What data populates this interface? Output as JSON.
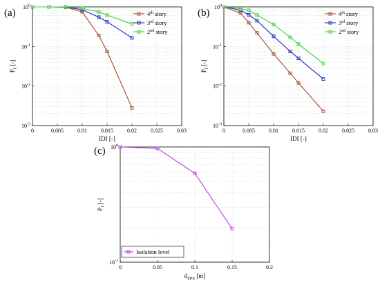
{
  "chart_data": [
    {
      "panel": "(a)",
      "type": "line",
      "xlabel": "IDI [-]",
      "ylabel": "P_f [-]",
      "xlim": [
        0,
        0.03
      ],
      "ylim": [
        0.001,
        1
      ],
      "yscale": "log",
      "grid": true,
      "legend_position": "top-right",
      "x_ticks": [
        "0",
        "0.005",
        "0.01",
        "0.015",
        "0.02",
        "0.025",
        "0.03"
      ],
      "y_ticks": [
        "10^0",
        "10^-1",
        "10^-2",
        "10^-3"
      ],
      "series": [
        {
          "name": "4th story",
          "color": "#a0452a",
          "x": [
            0,
            0.00333,
            0.00667,
            0.01,
            0.01333,
            0.015,
            0.02
          ],
          "y": [
            1.0,
            1.0,
            0.99,
            0.75,
            0.19,
            0.075,
            0.0028
          ]
        },
        {
          "name": "3rd story",
          "color": "#1a22c8",
          "x": [
            0,
            0.00333,
            0.00667,
            0.01,
            0.01333,
            0.015,
            0.02
          ],
          "y": [
            1.0,
            1.0,
            0.99,
            0.85,
            0.55,
            0.42,
            0.165
          ]
        },
        {
          "name": "2nd story",
          "color": "#39d22c",
          "x": [
            0,
            0.00333,
            0.00667,
            0.01,
            0.01333,
            0.015,
            0.02
          ],
          "y": [
            1.0,
            1.0,
            1.0,
            0.92,
            0.75,
            0.62,
            0.37
          ]
        }
      ]
    },
    {
      "panel": "(b)",
      "type": "line",
      "xlabel": "IDI [-]",
      "ylabel": "P_f [-]",
      "xlim": [
        0,
        0.03
      ],
      "ylim": [
        0.001,
        1
      ],
      "yscale": "log",
      "grid": true,
      "legend_position": "top-right",
      "x_ticks": [
        "0",
        "0.005",
        "0.01",
        "0.015",
        "0.02",
        "0.025",
        "0.03"
      ],
      "y_ticks": [
        "10^0",
        "10^-1",
        "10^-2",
        "10^-3"
      ],
      "series": [
        {
          "name": "4th story",
          "color": "#a0452a",
          "x": [
            0,
            0.00333,
            0.005,
            0.00667,
            0.01,
            0.01333,
            0.015,
            0.02
          ],
          "y": [
            1.0,
            0.7,
            0.4,
            0.22,
            0.065,
            0.021,
            0.012,
            0.0023
          ]
        },
        {
          "name": "3rd story",
          "color": "#1a22c8",
          "x": [
            0,
            0.00333,
            0.005,
            0.00667,
            0.01,
            0.01333,
            0.015,
            0.02
          ],
          "y": [
            1.0,
            0.83,
            0.63,
            0.45,
            0.18,
            0.075,
            0.05,
            0.015
          ]
        },
        {
          "name": "2nd story",
          "color": "#39d22c",
          "x": [
            0,
            0.00333,
            0.005,
            0.00667,
            0.01,
            0.01333,
            0.015,
            0.02
          ],
          "y": [
            1.0,
            0.9,
            0.82,
            0.62,
            0.36,
            0.17,
            0.115,
            0.037
          ]
        }
      ]
    },
    {
      "panel": "(c)",
      "type": "line",
      "xlabel": "d_FPS [m]",
      "ylabel": "P_f [-]",
      "xlim": [
        0,
        0.2
      ],
      "ylim": [
        0.1,
        1
      ],
      "yscale": "log",
      "grid": true,
      "legend_position": "bottom-left",
      "x_ticks": [
        "0",
        "0.05",
        "0.1",
        "0.15",
        "0.2"
      ],
      "y_ticks": [
        "10^0",
        "10^-1"
      ],
      "series": [
        {
          "name": "Isolation level",
          "color": "#b43ddf",
          "x": [
            0,
            0.05,
            0.1,
            0.15
          ],
          "y": [
            1.0,
            0.97,
            0.59,
            0.195
          ]
        }
      ]
    }
  ]
}
